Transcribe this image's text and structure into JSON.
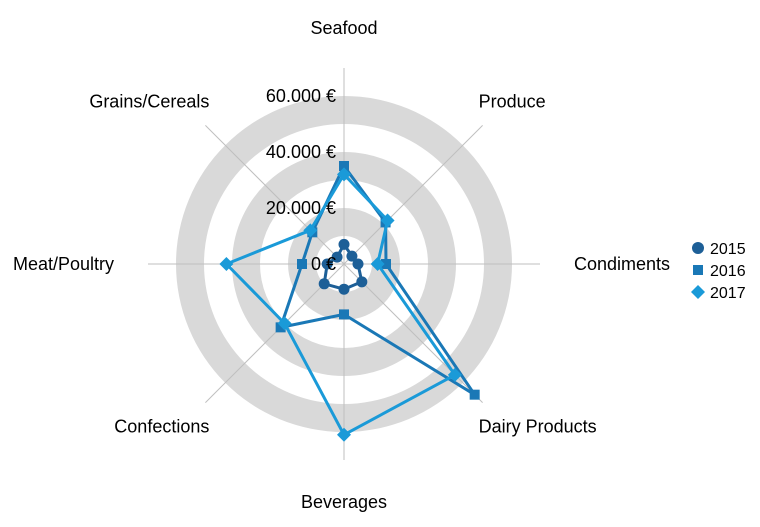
{
  "chart_data": {
    "type": "radar",
    "title": "",
    "categories": [
      "Seafood",
      "Produce",
      "Condiments",
      "Dairy Products",
      "Beverages",
      "Confections",
      "Meat/Poultry",
      "Grains/Cereals"
    ],
    "series": [
      {
        "name": "2015",
        "marker": "circle",
        "color": "#1d5f97",
        "values": [
          7000,
          4000,
          5000,
          9000,
          9000,
          10000,
          6000,
          3500
        ]
      },
      {
        "name": "2016",
        "marker": "square",
        "color": "#1a78b6",
        "values": [
          35000,
          21000,
          15000,
          66000,
          18000,
          32000,
          15000,
          16000
        ]
      },
      {
        "name": "2017",
        "marker": "diamond",
        "color": "#1a9ad8",
        "values": [
          32000,
          22000,
          12000,
          56000,
          61000,
          30000,
          42000,
          17000
        ]
      }
    ],
    "ylim": [
      0,
      70000
    ],
    "ticks": [
      {
        "value": 0,
        "label": "0 €"
      },
      {
        "value": 20000,
        "label": "20.000 €"
      },
      {
        "value": 40000,
        "label": "40.000 €"
      },
      {
        "value": 60000,
        "label": "60.000 €"
      }
    ],
    "legend_position": "right",
    "band_color": "#d9d9d9",
    "spoke_color": "#bfbfbf"
  }
}
